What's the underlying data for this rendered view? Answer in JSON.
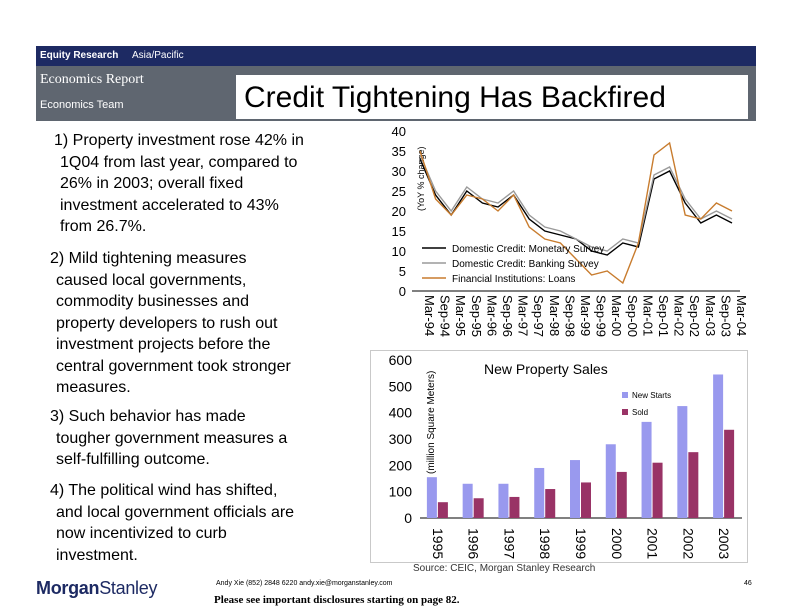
{
  "header": {
    "equity_research": "Equity Research",
    "region": "Asia/Pacific",
    "report_type": "Economics Report",
    "team": "Economics Team",
    "title": "Credit Tightening Has Backfired"
  },
  "bullets": [
    {
      "head": "1) Property investment rose 42% in",
      "lines": [
        "1Q04 from last year, compared to",
        "26% in 2003; overall fixed",
        "investment accelerated to 43%",
        "from 26.7%."
      ]
    },
    {
      "head": "2) Mild tightening measures",
      "lines": [
        "caused local governments,",
        "commodity businesses and",
        "property developers to rush out",
        "investment projects before the",
        "central government took stronger",
        "measures."
      ]
    },
    {
      "head": "3) Such behavior has made",
      "lines": [
        "tougher government measures a",
        "self-fulfilling outcome."
      ]
    },
    {
      "head": "4) The political wind has shifted,",
      "lines": [
        "and local government officials are",
        "now incentivized to curb",
        "investment."
      ]
    }
  ],
  "chart_data": [
    {
      "type": "line",
      "ylabel": "(YoY % change)",
      "ylim": [
        0,
        40
      ],
      "yticks": [
        "0",
        "5",
        "10",
        "15",
        "20",
        "25",
        "30",
        "35",
        "40"
      ],
      "x": [
        "Mar-94",
        "Sep-94",
        "Mar-95",
        "Sep-95",
        "Mar-96",
        "Sep-96",
        "Mar-97",
        "Sep-97",
        "Mar-98",
        "Sep-98",
        "Mar-99",
        "Sep-99",
        "Mar-00",
        "Sep-00",
        "Mar-01",
        "Sep-01",
        "Mar-02",
        "Sep-02",
        "Mar-03",
        "Sep-03",
        "Mar-04"
      ],
      "legend_position": "center",
      "series": [
        {
          "name": "Domestic Credit: Monetary Survey",
          "color": "#000000",
          "values": [
            33,
            24,
            19,
            25,
            22,
            21,
            24,
            18,
            15,
            14,
            13,
            10,
            9,
            12,
            11,
            28,
            30,
            22,
            17,
            19,
            17
          ]
        },
        {
          "name": "Domestic Credit: Banking Survey",
          "color": "#9a9a9a",
          "values": [
            34,
            25,
            20,
            26,
            23,
            22,
            25,
            19,
            16,
            15,
            13,
            11,
            10,
            13,
            12,
            29,
            31,
            23,
            18,
            20,
            18
          ]
        },
        {
          "name": "Financial Institutions: Loans",
          "color": "#c87c2e",
          "values": [
            35,
            23,
            19,
            24,
            23,
            20,
            24,
            16,
            13,
            12,
            8,
            4,
            5,
            2,
            12,
            34,
            37,
            19,
            18,
            22,
            20
          ]
        }
      ]
    },
    {
      "type": "bar",
      "title": "New Property Sales",
      "ylabel": "(million Square Meters)",
      "ylim": [
        0,
        600
      ],
      "yticks": [
        "0",
        "100",
        "200",
        "300",
        "400",
        "500",
        "600"
      ],
      "categories": [
        "1995",
        "1996",
        "1997",
        "1998",
        "1999",
        "2000",
        "2001",
        "2002",
        "2003"
      ],
      "legend_position": "top-right",
      "series": [
        {
          "name": "New Starts",
          "color": "#9999ee",
          "values": [
            155,
            130,
            130,
            190,
            220,
            280,
            365,
            425,
            545
          ]
        },
        {
          "name": "Sold",
          "color": "#993366",
          "values": [
            60,
            75,
            80,
            110,
            135,
            175,
            210,
            250,
            335
          ]
        }
      ],
      "source": "Source: CEIC, Morgan Stanley Research"
    }
  ],
  "footer": {
    "logo_a": "Morgan",
    "logo_b": "Stanley",
    "contact": "Andy Xie (852) 2848 6220  andy.xie@morganstanley.com",
    "disclosure": "Please see important disclosures starting on page 82.",
    "page": "46"
  }
}
